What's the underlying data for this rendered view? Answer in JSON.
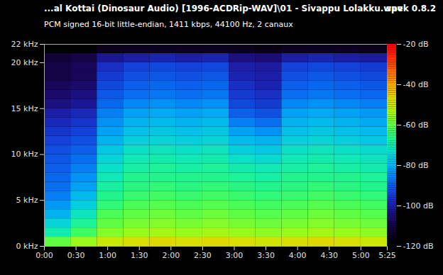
{
  "chart_data": {
    "type": "heatmap",
    "title": "...al Kottai (Dinosaur Audio) [1996-ACDRip-WAV]\\01 - Sivappu Lolakku.wav",
    "subtitle": "PCM signed 16-bit little-endian, 1411 kbps, 44100 Hz, 2 canaux",
    "annotation": "spek 0.8.2",
    "xlim": [
      0,
      325
    ],
    "xticks": [
      {
        "value": 0,
        "label": "0:00"
      },
      {
        "value": 30,
        "label": "0:30"
      },
      {
        "value": 60,
        "label": "1:00"
      },
      {
        "value": 90,
        "label": "1:30"
      },
      {
        "value": 120,
        "label": "2:00"
      },
      {
        "value": 150,
        "label": "2:30"
      },
      {
        "value": 180,
        "label": "3:00"
      },
      {
        "value": 210,
        "label": "3:30"
      },
      {
        "value": 240,
        "label": "4:00"
      },
      {
        "value": 270,
        "label": "4:30"
      },
      {
        "value": 300,
        "label": "5:00"
      },
      {
        "value": 325,
        "label": "5:25"
      }
    ],
    "ylim": [
      0,
      22
    ],
    "yticks": [
      {
        "value": 0,
        "label": "0 kHz"
      },
      {
        "value": 5,
        "label": "5 kHz"
      },
      {
        "value": 10,
        "label": "10 kHz"
      },
      {
        "value": 15,
        "label": "15 kHz"
      },
      {
        "value": 20,
        "label": "20 kHz"
      },
      {
        "value": 22,
        "label": "22 kHz"
      }
    ],
    "x_bins": [
      0,
      25,
      50,
      75,
      100,
      125,
      150,
      175,
      200,
      225,
      250,
      275,
      300,
      325
    ],
    "y_bins": [
      0,
      1,
      2,
      3,
      4,
      5,
      6,
      7,
      8,
      9,
      10,
      11,
      12,
      13,
      14,
      15,
      16,
      17,
      18,
      19,
      20,
      21,
      22
    ],
    "cells": [
      [
        -60,
        -70,
        -75,
        -80,
        -83,
        -86,
        -88,
        -89,
        -90,
        -91,
        -92,
        -94,
        -96,
        -98,
        -100,
        -104,
        -106,
        -108,
        -110,
        -110,
        -112,
        -120
      ],
      [
        -55,
        -63,
        -68,
        -72,
        -76,
        -79,
        -82,
        -84,
        -86,
        -88,
        -90,
        -92,
        -94,
        -96,
        -98,
        -102,
        -104,
        -106,
        -108,
        -108,
        -110,
        -120
      ],
      [
        -50,
        -57,
        -60,
        -62,
        -65,
        -67,
        -69,
        -71,
        -73,
        -75,
        -77,
        -80,
        -82,
        -84,
        -86,
        -89,
        -91,
        -93,
        -95,
        -97,
        -102,
        -116
      ],
      [
        -48,
        -55,
        -58,
        -60,
        -62,
        -64,
        -66,
        -67,
        -69,
        -71,
        -73,
        -76,
        -78,
        -80,
        -82,
        -85,
        -88,
        -90,
        -92,
        -94,
        -100,
        -115
      ],
      [
        -47,
        -54,
        -57,
        -59,
        -61,
        -63,
        -65,
        -67,
        -68,
        -70,
        -72,
        -75,
        -77,
        -79,
        -81,
        -84,
        -87,
        -89,
        -91,
        -93,
        -99,
        -115
      ],
      [
        -48,
        -55,
        -58,
        -60,
        -62,
        -64,
        -66,
        -67,
        -69,
        -71,
        -73,
        -76,
        -78,
        -80,
        -82,
        -85,
        -88,
        -90,
        -92,
        -94,
        -100,
        -115
      ],
      [
        -47,
        -54,
        -57,
        -59,
        -61,
        -63,
        -65,
        -67,
        -68,
        -70,
        -72,
        -75,
        -77,
        -79,
        -81,
        -84,
        -87,
        -89,
        -91,
        -93,
        -99,
        -115
      ],
      [
        -48,
        -55,
        -58,
        -60,
        -62,
        -64,
        -66,
        -68,
        -70,
        -73,
        -76,
        -79,
        -82,
        -86,
        -90,
        -93,
        -95,
        -97,
        -99,
        -100,
        -104,
        -116
      ],
      [
        -49,
        -56,
        -59,
        -61,
        -63,
        -65,
        -67,
        -69,
        -71,
        -74,
        -77,
        -80,
        -84,
        -88,
        -92,
        -95,
        -97,
        -99,
        -100,
        -101,
        -105,
        -117
      ],
      [
        -48,
        -55,
        -58,
        -60,
        -62,
        -64,
        -66,
        -67,
        -69,
        -71,
        -73,
        -76,
        -78,
        -80,
        -82,
        -85,
        -88,
        -90,
        -92,
        -94,
        -100,
        -115
      ],
      [
        -47,
        -54,
        -57,
        -59,
        -61,
        -63,
        -65,
        -67,
        -68,
        -70,
        -72,
        -75,
        -77,
        -79,
        -81,
        -84,
        -87,
        -89,
        -91,
        -93,
        -99,
        -115
      ],
      [
        -48,
        -55,
        -58,
        -60,
        -62,
        -64,
        -66,
        -67,
        -69,
        -71,
        -73,
        -76,
        -78,
        -80,
        -82,
        -85,
        -88,
        -90,
        -92,
        -94,
        -100,
        -115
      ],
      [
        -50,
        -56,
        -59,
        -61,
        -63,
        -65,
        -67,
        -68,
        -70,
        -72,
        -74,
        -77,
        -79,
        -81,
        -83,
        -86,
        -89,
        -91,
        -93,
        -95,
        -101,
        -116
      ]
    ],
    "colorbar": {
      "range": [
        -120,
        -20
      ],
      "ticks": [
        {
          "value": -20,
          "label": "-20 dB"
        },
        {
          "value": -40,
          "label": "-40 dB"
        },
        {
          "value": -60,
          "label": "-60 dB"
        },
        {
          "value": -80,
          "label": "-80 dB"
        },
        {
          "value": -100,
          "label": "-100 dB"
        },
        {
          "value": -120,
          "label": "-120 dB"
        }
      ]
    }
  }
}
